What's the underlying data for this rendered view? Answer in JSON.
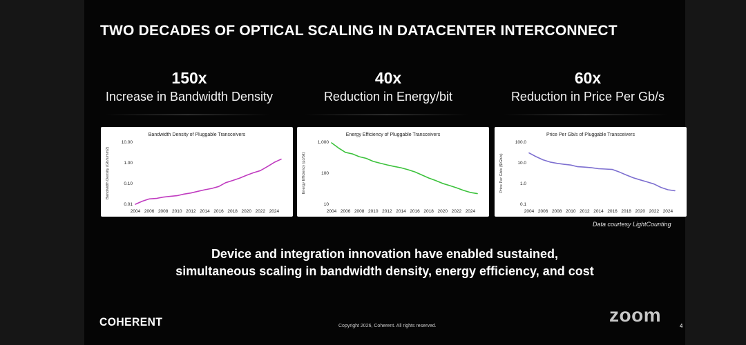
{
  "slide": {
    "title": "TWO DECADES OF OPTICAL SCALING IN DATACENTER INTERCONNECT",
    "stats": [
      {
        "value": "150x",
        "label": "Increase in Bandwidth Density"
      },
      {
        "value": "40x",
        "label": "Reduction in Energy/bit"
      },
      {
        "value": "60x",
        "label": "Reduction in Price Per Gb/s"
      }
    ],
    "credit": "Data courtesy LightCounting",
    "tagline_line1": "Device and integration innovation have enabled sustained,",
    "tagline_line2": "simultaneous scaling in bandwidth density, energy efficiency, and cost",
    "logo": "COHERENT",
    "copyright": "Copyright 2026, Coherent. All rights reserved.",
    "page_number": "4"
  },
  "overlay": {
    "watermark": "zoom"
  },
  "colors": {
    "bandwidth": "#c03cc0",
    "energy": "#3cc23c",
    "price": "#7d6fd0"
  },
  "chart_data": [
    {
      "type": "line",
      "title": "Bandwidth Density of Pluggable Transceivers",
      "xlabel": "",
      "ylabel": "Bandwidth Density (Gb/s/mm2)",
      "yscale": "log",
      "yticks": [
        "10.00",
        "1.00",
        "0.10",
        "0.01"
      ],
      "ytick_values": [
        10,
        1,
        0.1,
        0.01
      ],
      "ylim": [
        0.01,
        10
      ],
      "xticks": [
        "2004",
        "2006",
        "2008",
        "2010",
        "2012",
        "2014",
        "2016",
        "2018",
        "2020",
        "2022",
        "2024"
      ],
      "xlim": [
        2004,
        2025.5
      ],
      "series": [
        {
          "name": "Bandwidth Density",
          "x": [
            2004,
            2005,
            2006,
            2007,
            2008,
            2009,
            2010,
            2011,
            2012,
            2013,
            2014,
            2015,
            2016,
            2017,
            2018,
            2019,
            2020,
            2021,
            2022,
            2023,
            2024,
            2025
          ],
          "values": [
            0.01,
            0.014,
            0.018,
            0.019,
            0.022,
            0.024,
            0.026,
            0.031,
            0.035,
            0.042,
            0.05,
            0.058,
            0.072,
            0.11,
            0.14,
            0.18,
            0.25,
            0.33,
            0.42,
            0.65,
            1.05,
            1.5
          ]
        }
      ]
    },
    {
      "type": "line",
      "title": "Energy Efficiency of Pluggable Transceivers",
      "xlabel": "",
      "ylabel": "Energy Efficiency (pJ/bit)",
      "yscale": "log",
      "yticks": [
        "1,000",
        "100",
        "10"
      ],
      "ytick_values": [
        1000,
        100,
        10
      ],
      "ylim": [
        10,
        1000
      ],
      "xticks": [
        "2004",
        "2006",
        "2008",
        "2010",
        "2012",
        "2014",
        "2016",
        "2018",
        "2020",
        "2022",
        "2024"
      ],
      "xlim": [
        2004,
        2025.5
      ],
      "series": [
        {
          "name": "Energy Efficiency",
          "x": [
            2004,
            2005,
            2006,
            2007,
            2008,
            2009,
            2010,
            2011,
            2012,
            2013,
            2014,
            2015,
            2016,
            2017,
            2018,
            2019,
            2020,
            2021,
            2022,
            2023,
            2024,
            2025
          ],
          "values": [
            950,
            650,
            470,
            420,
            340,
            300,
            240,
            210,
            185,
            165,
            150,
            130,
            110,
            88,
            70,
            58,
            47,
            40,
            34,
            28,
            24,
            22
          ]
        }
      ]
    },
    {
      "type": "line",
      "title": "Price Per Gb/s of Pluggable Transceivers",
      "xlabel": "",
      "ylabel": "Price Per Gb/s ($/Gb/s)",
      "yscale": "log",
      "yticks": [
        "100.0",
        "10.0",
        "1.0",
        "0.1"
      ],
      "ytick_values": [
        100,
        10,
        1,
        0.1
      ],
      "ylim": [
        0.1,
        100
      ],
      "xticks": [
        "2004",
        "2006",
        "2008",
        "2010",
        "2012",
        "2014",
        "2016",
        "2018",
        "2020",
        "2022",
        "2024"
      ],
      "xlim": [
        2004,
        2025.5
      ],
      "series": [
        {
          "name": "Price Per Gb/s",
          "x": [
            2004,
            2005,
            2006,
            2007,
            2008,
            2009,
            2010,
            2011,
            2012,
            2013,
            2014,
            2015,
            2016,
            2017,
            2018,
            2019,
            2020,
            2021,
            2022,
            2023,
            2024,
            2025
          ],
          "values": [
            30,
            20,
            14,
            11,
            9.5,
            8.5,
            7.8,
            6.5,
            6.2,
            5.8,
            5.2,
            5.0,
            4.8,
            3.6,
            2.6,
            1.9,
            1.5,
            1.2,
            0.95,
            0.65,
            0.5,
            0.45
          ]
        }
      ]
    }
  ]
}
